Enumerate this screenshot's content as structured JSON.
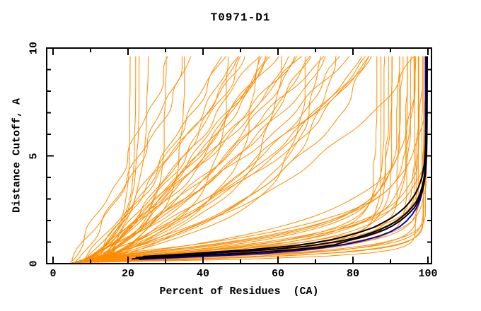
{
  "chart_data": {
    "type": "line",
    "title": "T0971-D1",
    "xlabel": "Percent of Residues  (CA)",
    "ylabel": "Distance Cutoff, A",
    "grid": false,
    "legend": null,
    "axes": {
      "x": {
        "min": 0,
        "max": 100,
        "minor_step": 10,
        "major_ticks": [
          0,
          20,
          40,
          60,
          80,
          100
        ],
        "tick_labels": [
          "0",
          "20",
          "40",
          "60",
          "80",
          "100"
        ]
      },
      "y": {
        "min": 0,
        "max": 10,
        "minor_step": 1,
        "major_ticks": [
          0,
          5,
          10
        ],
        "tick_labels": [
          "0",
          "5",
          "10"
        ]
      }
    },
    "colors": {
      "model_orange": "#ff8c00",
      "reference_black": "#000000",
      "reference_blue": "#0000cc",
      "frame": "#000000",
      "background": "#ffffff",
      "text": "#000000"
    },
    "series": {
      "orange_model_curves": {
        "color_key": "model_orange",
        "line_width": 1,
        "encoding": "each curve = [x0_percent, x_cap_percent, rate_k, y_start_A, jitter_amp]",
        "formula": "x(y) = x_cap - (x_cap - x0) * exp(-k * (y - y_start)), y in Angstroms 0..9.62",
        "curves": [
          [
            7,
            20.5,
            0.9,
            0.1,
            0.3
          ],
          [
            8,
            22,
            0.75,
            0.1,
            0.3
          ],
          [
            9,
            23,
            0.65,
            0.15,
            0.3
          ],
          [
            10,
            25.5,
            0.5,
            0.1,
            0.3
          ],
          [
            9,
            30,
            0.7,
            0.1,
            0.5
          ],
          [
            12,
            35,
            0.6,
            0.15,
            0.5
          ],
          [
            10,
            47,
            0.5,
            0.1,
            0.5
          ],
          [
            8,
            55,
            0.45,
            0.1,
            0.5
          ],
          [
            10,
            62,
            0.4,
            0.15,
            0.5
          ],
          [
            9,
            68,
            0.5,
            0.1,
            0.5
          ],
          [
            7,
            73,
            0.38,
            0.1,
            0.5
          ],
          [
            11,
            78,
            0.33,
            0.15,
            0.5
          ],
          [
            4.5,
            70,
            0.055,
            0.05,
            0.8
          ],
          [
            5,
            90,
            0.05,
            0.1,
            0.8
          ],
          [
            10,
            120,
            0.04,
            0.05,
            0.8
          ],
          [
            6,
            60,
            0.08,
            0.1,
            0.8
          ],
          [
            11,
            150,
            0.03,
            0.15,
            0.8
          ],
          [
            9,
            200,
            0.025,
            0.05,
            0.8
          ],
          [
            12,
            100,
            0.06,
            0.1,
            0.8
          ],
          [
            10,
            80,
            0.09,
            0.05,
            0.8
          ],
          [
            8,
            130,
            0.045,
            0.15,
            0.8
          ],
          [
            13,
            250,
            0.02,
            0.05,
            0.8
          ],
          [
            9,
            95,
            0.085,
            0.1,
            0.8
          ],
          [
            12,
            180,
            0.033,
            0.05,
            0.8
          ],
          [
            10,
            110,
            0.07,
            0.15,
            0.8
          ],
          [
            14,
            300,
            0.018,
            0.05,
            0.8
          ],
          [
            8,
            75,
            0.13,
            0.1,
            0.8
          ],
          [
            11,
            140,
            0.055,
            0.05,
            0.8
          ],
          [
            9,
            160,
            0.05,
            0.15,
            0.8
          ],
          [
            13,
            220,
            0.03,
            0.05,
            0.8
          ],
          [
            10,
            90,
            0.12,
            0.1,
            0.8
          ],
          [
            12,
            130,
            0.07,
            0.05,
            0.8
          ],
          [
            8,
            85,
            0.16,
            0.15,
            0.8
          ],
          [
            14,
            260,
            0.028,
            0.05,
            0.8
          ],
          [
            10,
            120,
            0.09,
            0.1,
            0.8
          ],
          [
            11,
            100,
            0.14,
            0.05,
            0.8
          ],
          [
            9,
            140,
            0.08,
            0.15,
            0.8
          ],
          [
            12,
            110,
            0.13,
            0.05,
            0.8
          ],
          [
            13,
            160,
            0.07,
            0.1,
            0.8
          ],
          [
            10,
            95,
            0.22,
            0.05,
            0.8
          ],
          [
            8,
            105,
            0.16,
            0.15,
            0.8
          ],
          [
            11,
            130,
            0.1,
            0.05,
            0.8
          ],
          [
            14,
            120,
            0.16,
            0.1,
            0.8
          ],
          [
            6,
            86,
            1.4,
            0.1,
            0.35
          ],
          [
            7,
            88,
            1.2,
            0.15,
            0.35
          ],
          [
            5,
            90,
            1.6,
            0.05,
            0.35
          ],
          [
            8,
            90,
            1.0,
            0.2,
            0.35
          ],
          [
            6,
            92,
            1.8,
            0.1,
            0.35
          ],
          [
            9,
            92,
            0.9,
            0.25,
            0.35
          ],
          [
            7,
            94,
            1.3,
            0.1,
            0.35
          ],
          [
            5,
            94,
            2.2,
            0.05,
            0.35
          ],
          [
            8,
            95,
            1.1,
            0.2,
            0.35
          ],
          [
            6,
            96,
            1.7,
            0.1,
            0.35
          ],
          [
            10,
            96,
            0.8,
            0.3,
            0.35
          ],
          [
            7,
            97,
            1.5,
            0.15,
            0.35
          ],
          [
            5,
            97,
            2.6,
            0.05,
            0.35
          ],
          [
            9,
            98,
            1.0,
            0.25,
            0.35
          ],
          [
            6,
            98,
            2.0,
            0.1,
            0.35
          ],
          [
            8,
            99,
            1.3,
            0.2,
            0.35
          ],
          [
            5,
            99,
            3.0,
            0.05,
            0.35
          ],
          [
            7,
            99.4,
            1.8,
            0.15,
            0.35
          ],
          [
            10,
            99.4,
            0.7,
            0.35,
            0.35
          ],
          [
            6,
            99.5,
            2.4,
            0.1,
            0.35
          ],
          [
            8,
            99.5,
            1.0,
            0.2,
            0.35
          ],
          [
            5,
            87,
            2.0,
            0.05,
            0.35
          ],
          [
            9,
            89,
            1.5,
            0.25,
            0.35
          ],
          [
            11,
            93,
            0.85,
            0.3,
            0.35
          ],
          [
            12,
            97,
            0.6,
            0.3,
            0.35
          ],
          [
            6,
            97,
            4.5,
            0.05,
            0.3
          ],
          [
            8,
            98.5,
            3.5,
            0.1,
            0.3
          ],
          [
            10,
            99,
            2.8,
            0.15,
            0.3
          ]
        ]
      },
      "black_reference_curves": {
        "color_key": "reference_black",
        "line_width": 2,
        "curves": [
          {
            "points": [
              [
                21,
                0.22
              ],
              [
                26,
                0.27
              ],
              [
                32,
                0.32
              ],
              [
                38,
                0.38
              ],
              [
                45,
                0.44
              ],
              [
                52,
                0.5
              ],
              [
                58,
                0.57
              ],
              [
                64,
                0.65
              ],
              [
                70,
                0.75
              ],
              [
                75,
                0.87
              ],
              [
                79,
                1.08
              ],
              [
                83,
                1.25
              ],
              [
                86,
                1.42
              ],
              [
                88.5,
                1.58
              ],
              [
                90.5,
                1.75
              ],
              [
                92.3,
                1.95
              ],
              [
                93.8,
                2.15
              ],
              [
                95.2,
                2.38
              ],
              [
                96.4,
                2.6
              ],
              [
                97.4,
                2.9
              ],
              [
                98.2,
                3.25
              ],
              [
                98.9,
                3.65
              ],
              [
                99.4,
                4.2
              ],
              [
                99.65,
                5.1
              ],
              [
                99.75,
                6.5
              ],
              [
                99.8,
                9.62
              ]
            ]
          },
          {
            "points": [
              [
                22,
                0.28
              ],
              [
                28,
                0.34
              ],
              [
                34,
                0.4
              ],
              [
                41,
                0.47
              ],
              [
                48,
                0.54
              ],
              [
                55,
                0.62
              ],
              [
                61,
                0.7
              ],
              [
                67,
                0.8
              ],
              [
                72,
                0.92
              ],
              [
                77,
                1.06
              ],
              [
                81,
                1.22
              ],
              [
                84.5,
                1.4
              ],
              [
                87.2,
                1.58
              ],
              [
                89.5,
                1.76
              ],
              [
                91.4,
                1.95
              ],
              [
                93,
                2.15
              ],
              [
                94.5,
                2.38
              ],
              [
                95.8,
                2.62
              ],
              [
                96.9,
                2.88
              ],
              [
                97.8,
                3.2
              ],
              [
                98.5,
                3.6
              ],
              [
                99.1,
                4.1
              ],
              [
                99.5,
                4.8
              ],
              [
                99.7,
                5.9
              ],
              [
                99.8,
                9.62
              ]
            ]
          },
          {
            "points": [
              [
                24,
                0.33
              ],
              [
                31,
                0.4
              ],
              [
                38,
                0.48
              ],
              [
                45,
                0.56
              ],
              [
                52,
                0.64
              ],
              [
                58,
                0.73
              ],
              [
                64,
                0.83
              ],
              [
                69,
                0.95
              ],
              [
                74,
                1.1
              ],
              [
                78,
                1.27
              ],
              [
                82,
                1.47
              ],
              [
                85.5,
                1.68
              ],
              [
                88,
                1.9
              ],
              [
                90.3,
                2.12
              ],
              [
                92.2,
                2.36
              ],
              [
                93.9,
                2.62
              ],
              [
                95.3,
                2.9
              ],
              [
                96.5,
                3.2
              ],
              [
                97.5,
                3.55
              ],
              [
                98.4,
                4.0
              ],
              [
                99,
                4.6
              ],
              [
                99.4,
                5.5
              ],
              [
                99.6,
                7.0
              ],
              [
                99.7,
                9.62
              ]
            ]
          }
        ]
      },
      "blue_reference_curve": {
        "color_key": "reference_blue",
        "line_width": 2,
        "curves": [
          {
            "points": [
              [
                23,
                0.2
              ],
              [
                30,
                0.26
              ],
              [
                40,
                0.34
              ],
              [
                50,
                0.42
              ],
              [
                58,
                0.5
              ],
              [
                66,
                0.62
              ],
              [
                72,
                0.74
              ],
              [
                78,
                0.9
              ],
              [
                83,
                1.08
              ],
              [
                87,
                1.28
              ],
              [
                90,
                1.48
              ],
              [
                92.5,
                1.72
              ],
              [
                94.3,
                1.98
              ],
              [
                95.8,
                2.28
              ],
              [
                97,
                2.6
              ],
              [
                97.9,
                2.95
              ],
              [
                98.6,
                3.4
              ],
              [
                99,
                3.9
              ],
              [
                99.25,
                4.6
              ],
              [
                99.35,
                5.8
              ],
              [
                99.4,
                9.62
              ]
            ]
          }
        ]
      }
    }
  }
}
